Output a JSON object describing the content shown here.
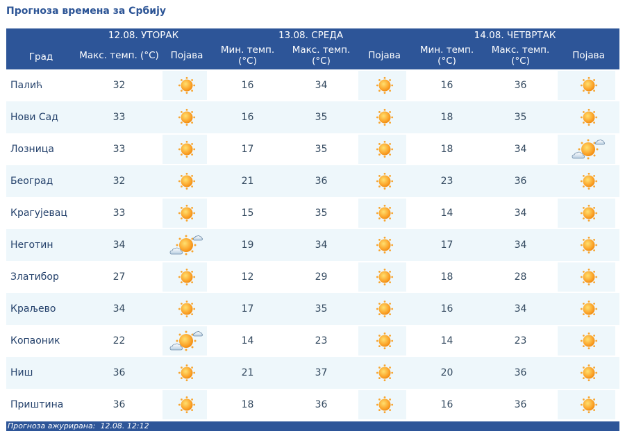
{
  "title": "Прогноза времена за Србију",
  "header": {
    "city_col": "Град",
    "days": [
      {
        "label": "12.08. УТОРАК",
        "cols": [
          "Макс. темп. (°C)",
          "Појава"
        ]
      },
      {
        "label": "13.08. СРЕДА",
        "cols": [
          "Мин. темп. (°C)",
          "Макс. темп. (°C)",
          "Појава"
        ]
      },
      {
        "label": "14.08. ЧЕТВРТАК",
        "cols": [
          "Мин. темп. (°C)",
          "Макс. темп. (°C)",
          "Појава"
        ]
      }
    ]
  },
  "rows": [
    {
      "city": "Палић",
      "d1_max": "32",
      "d1_icon": "sun",
      "d2_min": "16",
      "d2_max": "34",
      "d2_icon": "sun",
      "d3_min": "16",
      "d3_max": "36",
      "d3_icon": "sun"
    },
    {
      "city": "Нови Сад",
      "d1_max": "33",
      "d1_icon": "sun",
      "d2_min": "16",
      "d2_max": "35",
      "d2_icon": "sun",
      "d3_min": "18",
      "d3_max": "35",
      "d3_icon": "sun"
    },
    {
      "city": "Лозница",
      "d1_max": "33",
      "d1_icon": "sun",
      "d2_min": "17",
      "d2_max": "35",
      "d2_icon": "sun",
      "d3_min": "18",
      "d3_max": "34",
      "d3_icon": "sun-cloud"
    },
    {
      "city": "Београд",
      "d1_max": "32",
      "d1_icon": "sun",
      "d2_min": "21",
      "d2_max": "36",
      "d2_icon": "sun",
      "d3_min": "23",
      "d3_max": "36",
      "d3_icon": "sun"
    },
    {
      "city": "Крагујевац",
      "d1_max": "33",
      "d1_icon": "sun",
      "d2_min": "15",
      "d2_max": "35",
      "d2_icon": "sun",
      "d3_min": "14",
      "d3_max": "34",
      "d3_icon": "sun"
    },
    {
      "city": "Неготин",
      "d1_max": "34",
      "d1_icon": "sun-cloud",
      "d2_min": "19",
      "d2_max": "34",
      "d2_icon": "sun",
      "d3_min": "17",
      "d3_max": "34",
      "d3_icon": "sun"
    },
    {
      "city": "Златибор",
      "d1_max": "27",
      "d1_icon": "sun",
      "d2_min": "12",
      "d2_max": "29",
      "d2_icon": "sun",
      "d3_min": "18",
      "d3_max": "28",
      "d3_icon": "sun"
    },
    {
      "city": "Краљево",
      "d1_max": "34",
      "d1_icon": "sun",
      "d2_min": "17",
      "d2_max": "35",
      "d2_icon": "sun",
      "d3_min": "16",
      "d3_max": "34",
      "d3_icon": "sun"
    },
    {
      "city": "Копаоник",
      "d1_max": "22",
      "d1_icon": "sun-cloud",
      "d2_min": "14",
      "d2_max": "23",
      "d2_icon": "sun",
      "d3_min": "14",
      "d3_max": "23",
      "d3_icon": "sun"
    },
    {
      "city": "Ниш",
      "d1_max": "36",
      "d1_icon": "sun",
      "d2_min": "21",
      "d2_max": "37",
      "d2_icon": "sun",
      "d3_min": "20",
      "d3_max": "36",
      "d3_icon": "sun"
    },
    {
      "city": "Приштина",
      "d1_max": "36",
      "d1_icon": "sun",
      "d2_min": "18",
      "d2_max": "36",
      "d2_icon": "sun",
      "d3_min": "16",
      "d3_max": "36",
      "d3_icon": "sun"
    }
  ],
  "footer": {
    "label": "Прогноза ажурирана:",
    "value": "12.08. 12:12"
  }
}
